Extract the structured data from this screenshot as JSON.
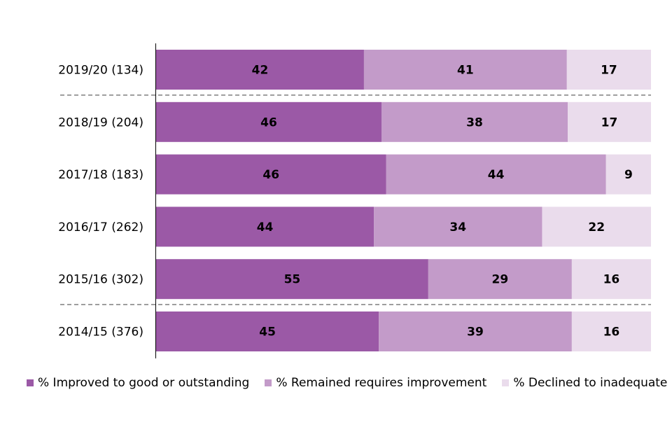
{
  "chart_data": {
    "type": "bar",
    "orientation": "horizontal",
    "stacked": true,
    "normalized": true,
    "categories": [
      "2019/20 (134)",
      "2018/19 (204)",
      "2017/18 (183)",
      "2016/17 (262)",
      "2015/16 (302)",
      "2014/15 (376)"
    ],
    "series": [
      {
        "name": "% Improved to good or outstanding",
        "color": "#9b59a6",
        "values": [
          42,
          46,
          46,
          44,
          55,
          45
        ]
      },
      {
        "name": "% Remained requires improvement",
        "color": "#c39bc9",
        "values": [
          41,
          38,
          44,
          34,
          29,
          39
        ]
      },
      {
        "name": "% Declined to inadequate",
        "color": "#eadcec",
        "values": [
          17,
          17,
          9,
          22,
          16,
          16
        ]
      }
    ],
    "separators_after": [
      "2019/20 (134)",
      "2015/16 (302)"
    ],
    "legend_position": "bottom",
    "grid": false
  }
}
